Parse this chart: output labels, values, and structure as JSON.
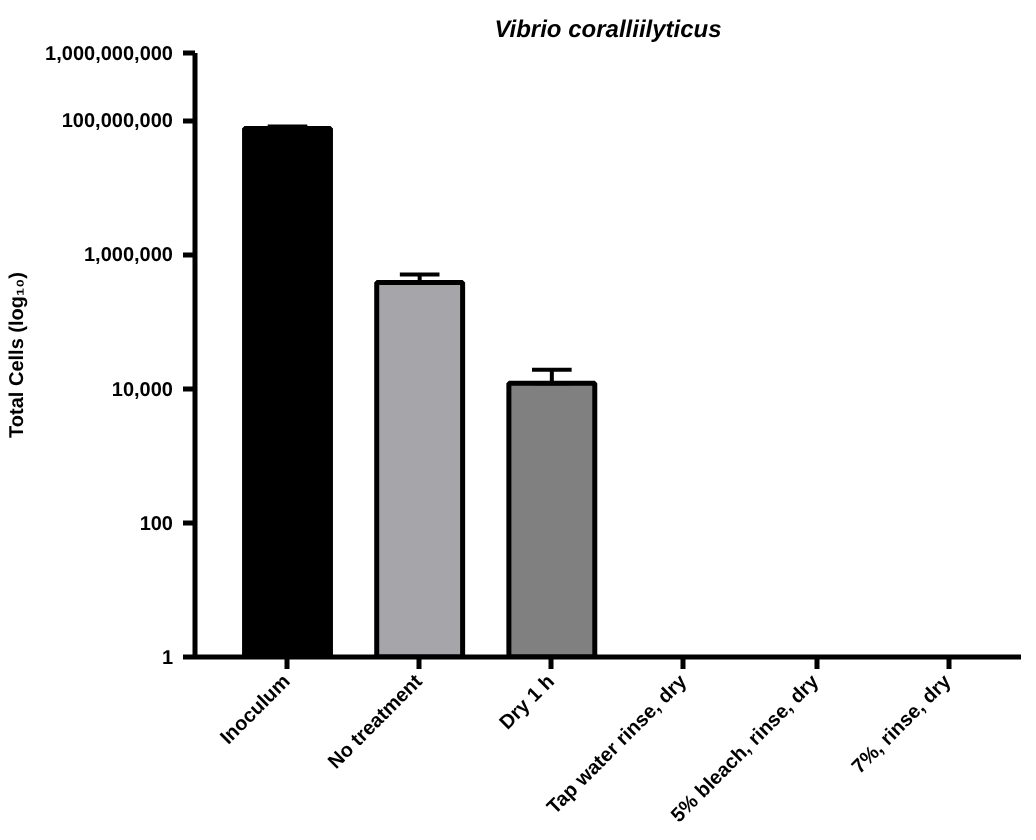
{
  "chart_data": {
    "type": "bar",
    "title": "Vibrio coralliilyticus",
    "ylabel": "Total Cells (log₁₀)",
    "categories": [
      "Inoculum",
      "No treatment",
      "Dry 1 h",
      "Tap water rinse, dry",
      "5% bleach, rinse, dry",
      "7%, rinse, dry"
    ],
    "values": [
      75000000,
      380000,
      12000,
      null,
      null,
      null
    ],
    "errors": [
      [
        75000000,
        80000000
      ],
      [
        380000,
        500000
      ],
      [
        12000,
        19000
      ],
      null,
      null,
      null
    ],
    "colors": [
      "#000000",
      "#a5a5aa",
      "#808080",
      "#808080",
      "#808080",
      "#808080"
    ],
    "log": true,
    "ylim": [
      1,
      1000000000
    ],
    "yticks": [
      1,
      100,
      {
        "value": 10000,
        "label": "10,000"
      },
      {
        "value": 1000000,
        "label": "1,000,000"
      },
      {
        "value": 100000000,
        "label": "100,000,000"
      },
      {
        "value": 1000000000,
        "label": "1,000,000,000"
      }
    ],
    "grid": false
  }
}
